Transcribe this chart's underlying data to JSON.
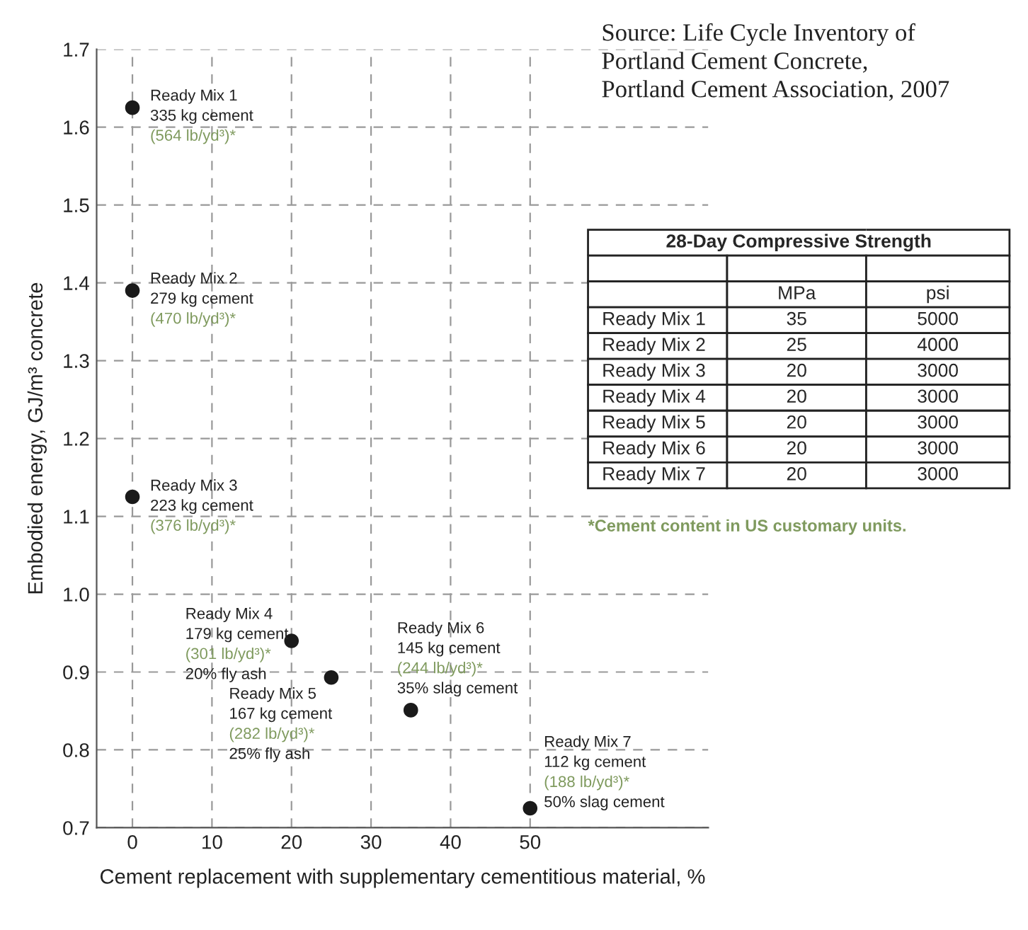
{
  "chart_data": [
    {
      "type": "scatter",
      "xlabel": "Cement replacement with supplementary cementitious material, %",
      "ylabel": "Embodied energy, GJ/m³ concrete",
      "x": [
        0,
        0,
        0,
        20,
        25,
        35,
        50
      ],
      "series": [
        {
          "color": "#1a1a1a",
          "values": [
            1.625,
            1.39,
            1.125,
            0.94,
            0.893,
            0.851,
            0.725
          ]
        }
      ],
      "marker": "circle",
      "xlim": [
        -4.5,
        72.4
      ],
      "ylim": [
        0.7,
        1.7
      ],
      "xticks": [
        0,
        10,
        20,
        30,
        40,
        50
      ],
      "yticks": [
        {
          "value": 0.7,
          "label": "0.7"
        },
        {
          "value": 0.8,
          "label": "0.8"
        },
        {
          "value": 0.9,
          "label": "0.9"
        },
        {
          "value": 1.0,
          "label": "1.0"
        },
        {
          "value": 1.1,
          "label": "1.1"
        },
        {
          "value": 1.2,
          "label": "1.2"
        },
        {
          "value": 1.3,
          "label": "1.3"
        },
        {
          "value": 1.4,
          "label": "1.4"
        },
        {
          "value": 1.5,
          "label": "1.5"
        },
        {
          "value": 1.6,
          "label": "1.6"
        },
        {
          "value": 1.7,
          "label": "1.7"
        }
      ],
      "grid": true,
      "annotations": [
        {
          "text": "Ready Mix 1\n335 kg cement\n(564 lb/yd³)*",
          "x": 0,
          "y": 1.625
        },
        {
          "text": "Ready Mix 2\n279 kg cement\n(470 lb/yd³)*",
          "x": 0,
          "y": 1.39
        },
        {
          "text": "Ready Mix 3\n223 kg cement\n(376 lb/yd³)*",
          "x": 0,
          "y": 1.125
        },
        {
          "text": "Ready Mix 4\n179 kg cement\n(301 lb/yd³)*\n20% fly ash",
          "x": 20,
          "y": 0.94
        },
        {
          "text": "Ready Mix 5\n167 kg cement\n(282 lb/yd³)*\n25% fly ash",
          "x": 25,
          "y": 0.893
        },
        {
          "text": "Ready Mix 6\n145 kg cement\n(244 lb/yd³)*\n35% slag cement",
          "x": 35,
          "y": 0.851
        },
        {
          "text": "Ready Mix 7\n112 kg cement\n(188 lb/yd³)*\n50% slag cement",
          "x": 50,
          "y": 0.725
        },
        "Source: Life Cycle Inventory of\nPortland Cement Concrete,\nPortland Cement Association, 2007"
      ]
    },
    {
      "type": "other",
      "title": "28-Day Compressive Strength",
      "categories": [
        "Ready Mix 1",
        "Ready Mix 2",
        "Ready Mix 3",
        "Ready Mix 4",
        "Ready Mix 5",
        "Ready Mix 6",
        "Ready Mix 7"
      ],
      "series": [
        {
          "name": "MPa",
          "values": [
            35,
            25,
            20,
            20,
            20,
            20,
            20
          ]
        },
        {
          "name": "psi",
          "values": [
            5000,
            4000,
            3000,
            3000,
            3000,
            3000,
            3000
          ]
        }
      ],
      "data_labels": true,
      "annotations": [
        "*Cement content in US customary units."
      ]
    }
  ]
}
